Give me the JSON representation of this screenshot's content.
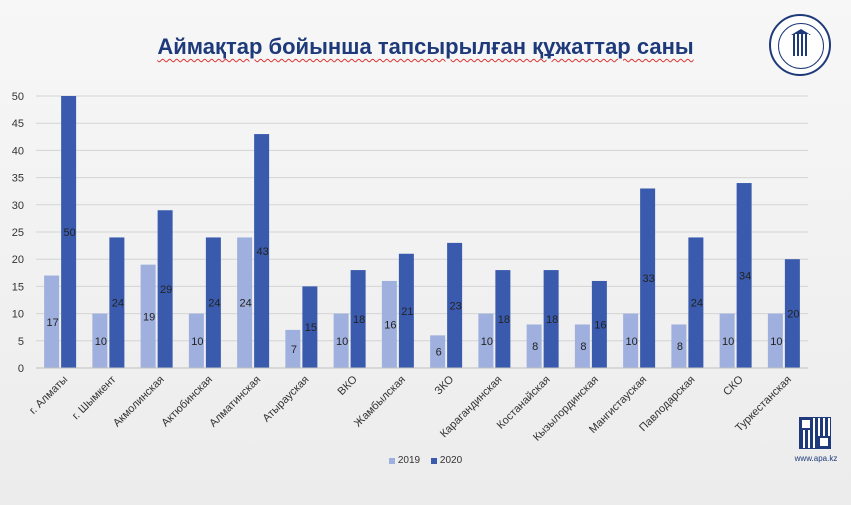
{
  "title": "Аймақтар бойынша тапсырылған құжаттар саны",
  "website": "www.apa.kz",
  "seal": {
    "icon": "academy-seal-icon"
  },
  "qr": {
    "icon": "qr-code-icon"
  },
  "chart_data": {
    "type": "bar",
    "categories": [
      "г. Алматы",
      "г. Шымкент",
      "Акмолинская",
      "Актюбинская",
      "Алматинская",
      "Атырауская",
      "ВКО",
      "Жамбылская",
      "ЗКО",
      "Карагандинская",
      "Костанайская",
      "Кызылординская",
      "Мангистауская",
      "Павлодарская",
      "СКО",
      "Туркестанская"
    ],
    "series": [
      {
        "name": "2019",
        "color": "#9fb0de",
        "values": [
          17,
          10,
          19,
          10,
          24,
          7,
          10,
          16,
          6,
          10,
          8,
          8,
          10,
          8,
          10,
          10
        ]
      },
      {
        "name": "2020",
        "color": "#3a5bad",
        "values": [
          50,
          24,
          29,
          24,
          43,
          15,
          18,
          21,
          23,
          18,
          18,
          16,
          33,
          24,
          34,
          20
        ]
      }
    ],
    "ylim": [
      0,
      50
    ],
    "yticks": [
      0,
      5,
      10,
      15,
      20,
      25,
      30,
      35,
      40,
      45,
      50
    ],
    "grid": true,
    "legend_position": "bottom"
  }
}
